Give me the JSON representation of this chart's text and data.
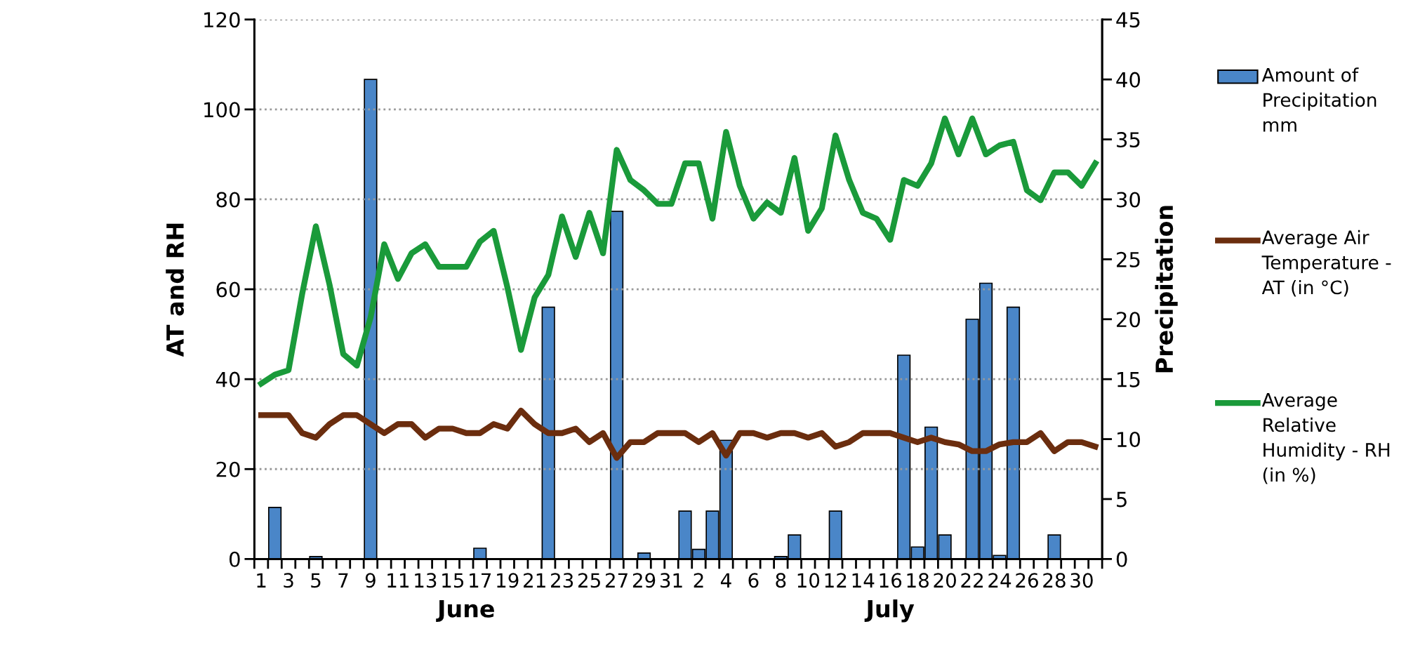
{
  "chart_data": {
    "type": "line",
    "ylabel": "AT and RH",
    "y2label": "Precipitation",
    "categories": [
      "1",
      null,
      "3",
      null,
      "5",
      null,
      "7",
      null,
      "9",
      null,
      "11",
      null,
      "13",
      null,
      "15",
      null,
      "17",
      null,
      "19",
      null,
      "21",
      null,
      "23",
      null,
      "25",
      null,
      "27",
      null,
      "29",
      null,
      "31",
      null,
      "2",
      null,
      "4",
      null,
      "6",
      null,
      "8",
      null,
      "10",
      null,
      "12",
      null,
      "14",
      null,
      "16",
      null,
      "18",
      null,
      "20",
      null,
      "22",
      null,
      "24",
      null,
      "26",
      null,
      "28",
      null,
      "30",
      null
    ],
    "series": [
      {
        "name": "Amount of Precipitation mm",
        "type": "bar",
        "axis": "y2",
        "color": "#4a86c8",
        "values": [
          0,
          4.3,
          0,
          0,
          0.2,
          0,
          0,
          0,
          40,
          0,
          0,
          0,
          0,
          0,
          0,
          0,
          0.9,
          0,
          0,
          0,
          0,
          21,
          0,
          0,
          0,
          0,
          29,
          0,
          0.5,
          0,
          0,
          4,
          0.8,
          4,
          9.9,
          0,
          0,
          0,
          0.2,
          2,
          0,
          0,
          4,
          0,
          0,
          0,
          0,
          17,
          1,
          11,
          2,
          0,
          20,
          23,
          0.3,
          21,
          0,
          0,
          2,
          0,
          0,
          0
        ]
      },
      {
        "name": "Average Air Temperature - AT (in °C)",
        "color": "#6b2d0e",
        "values": [
          32,
          32,
          32,
          28,
          27,
          30,
          32,
          32,
          30,
          28,
          30,
          30,
          27,
          29,
          29,
          28,
          28,
          30,
          29,
          33,
          30,
          28,
          28,
          29,
          26,
          28,
          22.5,
          26,
          26,
          28,
          28,
          28,
          26,
          28,
          23,
          28,
          28,
          27,
          28,
          28,
          27,
          28,
          25,
          26,
          28,
          28,
          28,
          27,
          26,
          27,
          26,
          25.5,
          24,
          24,
          25.5,
          26,
          26,
          28,
          24,
          26,
          26,
          25
        ]
      },
      {
        "name": "Average Relative Humidity - RH (in %)",
        "color": "#1a9a3a",
        "values": [
          39,
          41,
          42,
          59,
          74,
          61,
          45.6,
          43,
          53.7,
          70,
          62.3,
          68,
          70,
          65,
          65,
          65,
          70.6,
          73,
          60.5,
          46.5,
          58.2,
          63.2,
          76.2,
          67.2,
          77,
          68,
          91,
          84.3,
          82,
          79,
          79,
          88,
          88,
          75.7,
          95,
          83,
          75.7,
          79.3,
          77,
          89.2,
          73,
          78,
          94.2,
          84.3,
          77,
          75.7,
          71,
          84.3,
          83,
          88,
          98,
          90,
          98,
          90,
          92,
          92.8,
          82,
          79.8,
          86,
          86,
          83,
          88
        ]
      }
    ],
    "ylim": [
      0,
      120
    ],
    "yticks": [
      0,
      20,
      40,
      60,
      80,
      100,
      120
    ],
    "y2lim": [
      0,
      45
    ],
    "y2ticks": [
      0,
      5,
      10,
      15,
      20,
      25,
      30,
      35,
      40,
      45
    ],
    "grid": "y",
    "legend": "right",
    "line_style": "solid",
    "marker": "none",
    "annotations": [
      "June",
      "July"
    ]
  }
}
